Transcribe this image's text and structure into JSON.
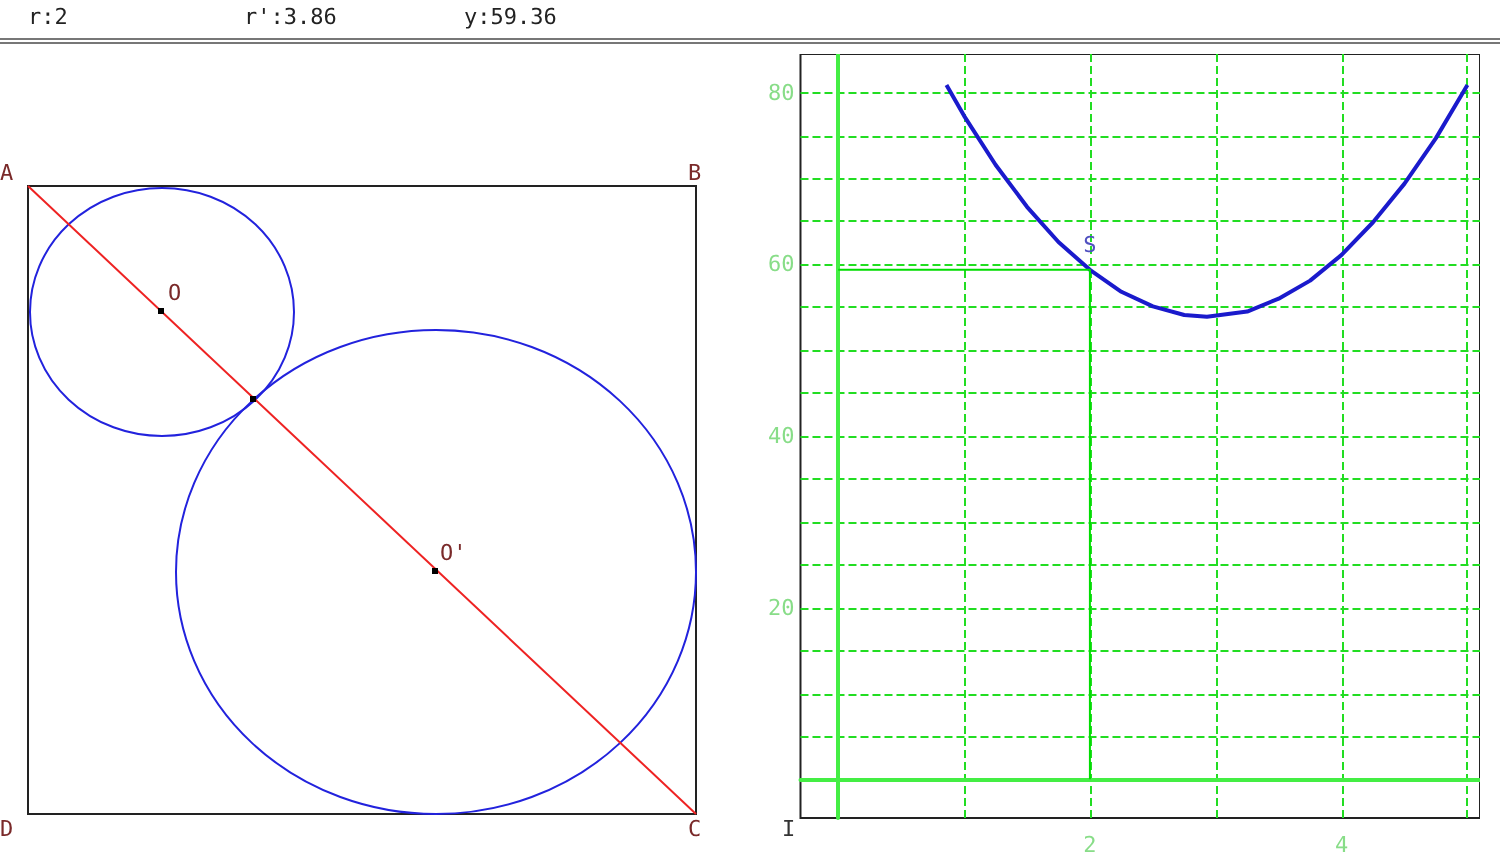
{
  "chart_data": {
    "type": "line",
    "annotations": [
      "r:2",
      "r':3.86",
      "y:59.36",
      "A",
      "B",
      "O",
      "O'",
      "D",
      "C",
      "I",
      {
        "text": "S",
        "x": 2,
        "y": 59.36
      }
    ],
    "xlim": [
      -0.3,
      5.1
    ],
    "ylim": [
      -4.5,
      84.5
    ],
    "xticks": [
      {
        "value": 0,
        "label": null
      },
      {
        "value": 1,
        "label": null
      },
      2,
      {
        "value": 3,
        "label": null
      },
      4,
      {
        "value": 5,
        "label": null
      }
    ],
    "yticks": [
      {
        "value": 0,
        "label": null
      },
      {
        "value": 5,
        "label": null
      },
      {
        "value": 10,
        "label": null
      },
      {
        "value": 15,
        "label": null
      },
      20,
      {
        "value": 25,
        "label": null
      },
      {
        "value": 30,
        "label": null
      },
      {
        "value": 35,
        "label": null
      },
      40,
      {
        "value": 45,
        "label": null
      },
      {
        "value": 50,
        "label": null
      },
      {
        "value": 55,
        "label": null
      },
      60,
      {
        "value": 65,
        "label": null
      },
      {
        "value": 70,
        "label": null
      },
      {
        "value": 75,
        "label": null
      },
      80
    ],
    "series": [
      {
        "color": "#1a1acc",
        "x": [
          0.86,
          1,
          1.25,
          1.5,
          1.75,
          2,
          2.25,
          2.5,
          2.75,
          2.93,
          3.25,
          3.5,
          3.75,
          4,
          4.25,
          4.5,
          4.75,
          5
        ],
        "values": [
          80.9,
          77.3,
          71.6,
          66.7,
          62.6,
          59.36,
          56.8,
          55.1,
          54.1,
          53.9,
          54.5,
          56.0,
          58.1,
          61.1,
          64.9,
          69.4,
          74.7,
          80.9
        ]
      },
      {
        "color": "#00dd00",
        "x": [
          0,
          2,
          2
        ],
        "values": [
          59.36,
          59.36,
          0
        ]
      }
    ],
    "grid": true,
    "marker": "none",
    "line_style": "solid"
  }
}
